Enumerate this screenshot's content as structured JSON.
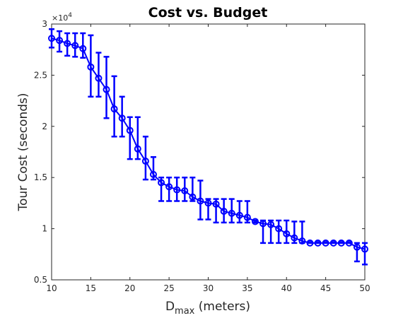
{
  "chart_data": {
    "type": "line",
    "title": "Cost vs. Budget",
    "xlabel": {
      "main": "D",
      "sub": "max",
      "rest": " (meters)"
    },
    "ylabel": "Tour Cost (seconds)",
    "exponent_label": {
      "base": "×10",
      "power": "4"
    },
    "xlim": [
      10,
      50
    ],
    "ylim": [
      0.5,
      3
    ],
    "x_ticks": [
      "10",
      "15",
      "20",
      "25",
      "30",
      "35",
      "40",
      "45",
      "50"
    ],
    "y_ticks": [
      "0.5",
      "1",
      "1.5",
      "2",
      "2.5",
      "3"
    ],
    "grid": false,
    "color": "#0000ff",
    "marker": "circle",
    "series": [
      {
        "x": [
          10,
          11,
          12,
          13,
          14,
          15,
          16,
          17,
          18,
          19,
          20,
          21,
          22,
          23,
          24,
          25,
          26,
          27,
          28,
          29,
          30,
          31,
          32,
          33,
          34,
          35,
          36,
          37,
          38,
          39,
          40,
          41,
          42,
          43,
          44,
          45,
          46,
          47,
          48,
          49,
          50
        ],
        "y": [
          2.86,
          2.84,
          2.81,
          2.79,
          2.76,
          2.58,
          2.47,
          2.36,
          2.17,
          2.08,
          1.96,
          1.78,
          1.66,
          1.53,
          1.45,
          1.41,
          1.38,
          1.37,
          1.31,
          1.27,
          1.25,
          1.24,
          1.17,
          1.15,
          1.13,
          1.11,
          1.07,
          1.05,
          1.04,
          1.0,
          0.95,
          0.91,
          0.88,
          0.86,
          0.86,
          0.86,
          0.86,
          0.86,
          0.86,
          0.82,
          0.8
        ],
        "err_low": [
          2.77,
          2.73,
          2.69,
          2.68,
          2.67,
          2.29,
          2.29,
          2.08,
          1.9,
          1.9,
          1.68,
          1.68,
          1.48,
          1.48,
          1.27,
          1.27,
          1.27,
          1.27,
          1.27,
          1.09,
          1.09,
          1.06,
          1.06,
          1.06,
          1.06,
          1.06,
          1.06,
          0.86,
          0.86,
          0.86,
          0.86,
          0.86,
          0.86,
          0.86,
          0.86,
          0.86,
          0.86,
          0.86,
          0.86,
          0.68,
          0.65
        ],
        "err_high": [
          2.95,
          2.93,
          2.91,
          2.91,
          2.91,
          2.89,
          2.72,
          2.68,
          2.49,
          2.29,
          2.09,
          2.09,
          1.9,
          1.7,
          1.5,
          1.5,
          1.5,
          1.5,
          1.5,
          1.47,
          1.29,
          1.29,
          1.29,
          1.29,
          1.27,
          1.27,
          1.08,
          1.08,
          1.08,
          1.08,
          1.08,
          1.07,
          1.07,
          0.87,
          0.87,
          0.87,
          0.87,
          0.87,
          0.87,
          0.86,
          0.86
        ]
      }
    ]
  }
}
